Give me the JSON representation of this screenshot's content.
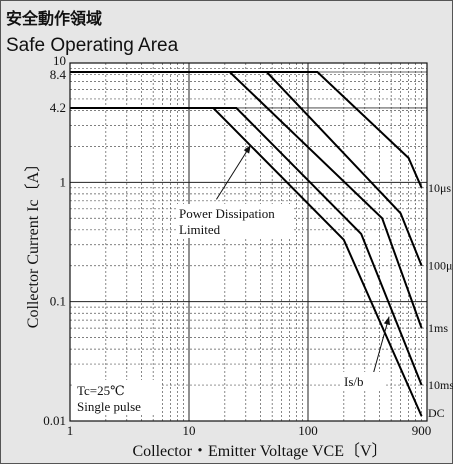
{
  "title_jp": "安全動作領域",
  "title_en": "Safe Operating Area",
  "chart_data": {
    "type": "line",
    "x_scale": "log",
    "y_scale": "log",
    "xlim": [
      1,
      1000
    ],
    "ylim": [
      0.01,
      10
    ],
    "grid": true,
    "xlabel": "Collector・Emitter Voltage  VCE〔V〕",
    "ylabel": "Collector Current  Ic〔A〕",
    "x_ticks": [
      {
        "value": 1,
        "label": "1"
      },
      {
        "value": 10,
        "label": "10"
      },
      {
        "value": 100,
        "label": "100"
      },
      {
        "value": 900,
        "label": "900"
      }
    ],
    "y_ticks": [
      {
        "value": 0.01,
        "label": "0.01"
      },
      {
        "value": 0.1,
        "label": "0.1"
      },
      {
        "value": 1,
        "label": "1"
      },
      {
        "value": 4.2,
        "label": "4.2"
      },
      {
        "value": 8.4,
        "label": "8.4"
      },
      {
        "value": 10,
        "label": "10"
      }
    ],
    "series": [
      {
        "name": "10μs",
        "points": [
          [
            1,
            8.4
          ],
          [
            120,
            8.4
          ],
          [
            700,
            1.6
          ],
          [
            900,
            0.9
          ]
        ]
      },
      {
        "name": "100μs",
        "points": [
          [
            1,
            8.4
          ],
          [
            45,
            8.4
          ],
          [
            600,
            0.55
          ],
          [
            900,
            0.2
          ]
        ]
      },
      {
        "name": "1ms",
        "points": [
          [
            1,
            8.4
          ],
          [
            22,
            8.4
          ],
          [
            420,
            0.5
          ],
          [
            900,
            0.06
          ]
        ]
      },
      {
        "name": "10ms",
        "points": [
          [
            1,
            4.2
          ],
          [
            25,
            4.2
          ],
          [
            280,
            0.37
          ],
          [
            900,
            0.02
          ]
        ]
      },
      {
        "name": "DC",
        "points": [
          [
            1,
            4.2
          ],
          [
            16,
            4.2
          ],
          [
            200,
            0.33
          ],
          [
            900,
            0.011
          ]
        ]
      }
    ],
    "annotations": {
      "power_dissipation_line1": "Power Dissipation",
      "power_dissipation_line2": "Limited",
      "second_breakdown": "Is/b",
      "condition_line1": "Tc=25℃",
      "condition_line2": "Single pulse"
    }
  }
}
